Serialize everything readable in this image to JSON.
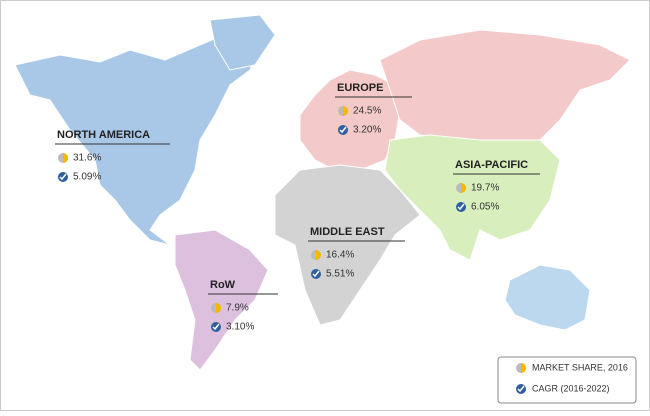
{
  "regions": [
    {
      "name": "NORTH AMERICA",
      "market_share": "31.6%",
      "cagr": "5.09%"
    },
    {
      "name": "EUROPE",
      "market_share": "24.5%",
      "cagr": "3.20%"
    },
    {
      "name": "ASIA-PACIFIC",
      "market_share": "19.7%",
      "cagr": "6.05%"
    },
    {
      "name": "MIDDLE EAST",
      "market_share": "16.4%",
      "cagr": "5.51%"
    },
    {
      "name": "RoW",
      "market_share": "7.9%",
      "cagr": "3.10%"
    }
  ],
  "legend": {
    "market_share": "MARKET SHARE, 2016",
    "cagr": "CAGR (2016-2022)"
  }
}
